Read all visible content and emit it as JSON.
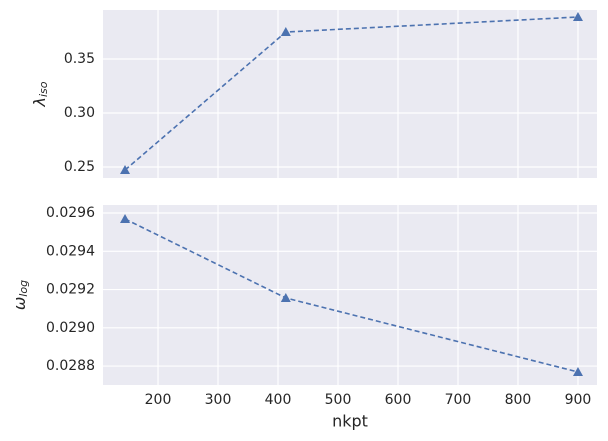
{
  "chart_data": [
    {
      "type": "line",
      "ylabel": "λ",
      "ylabel_sub": "iso",
      "x": [
        145,
        413,
        900
      ],
      "values": [
        0.2472,
        0.375,
        0.3889
      ],
      "color": "#4c72b0",
      "marker": "triangle",
      "dashed": true,
      "xlim": [
        108.3,
        931.7
      ],
      "xticks": [
        200,
        300,
        400,
        500,
        600,
        700,
        800,
        900
      ],
      "ylim": [
        0.2398,
        0.3954
      ],
      "yticks": [
        {
          "value": 0.25,
          "label": "0.25"
        },
        {
          "value": 0.3,
          "label": "0.30"
        },
        {
          "value": 0.35,
          "label": "0.35"
        }
      ],
      "grid": true
    },
    {
      "type": "line",
      "ylabel": "ω",
      "ylabel_sub": "log",
      "xlabel": "nkpt",
      "x": [
        145,
        413,
        900
      ],
      "values": [
        0.029569,
        0.029156,
        0.028769
      ],
      "color": "#4c72b0",
      "marker": "triangle",
      "dashed": true,
      "xlim": [
        108.3,
        931.7
      ],
      "xticks": [
        200,
        300,
        400,
        500,
        600,
        700,
        800,
        900
      ],
      "ylim": [
        0.028701,
        0.029642
      ],
      "yticks": [
        0.0288,
        {
          "value": 0.029,
          "label": "0.0290"
        },
        0.0292,
        0.0294,
        0.0296
      ],
      "grid": true
    }
  ]
}
